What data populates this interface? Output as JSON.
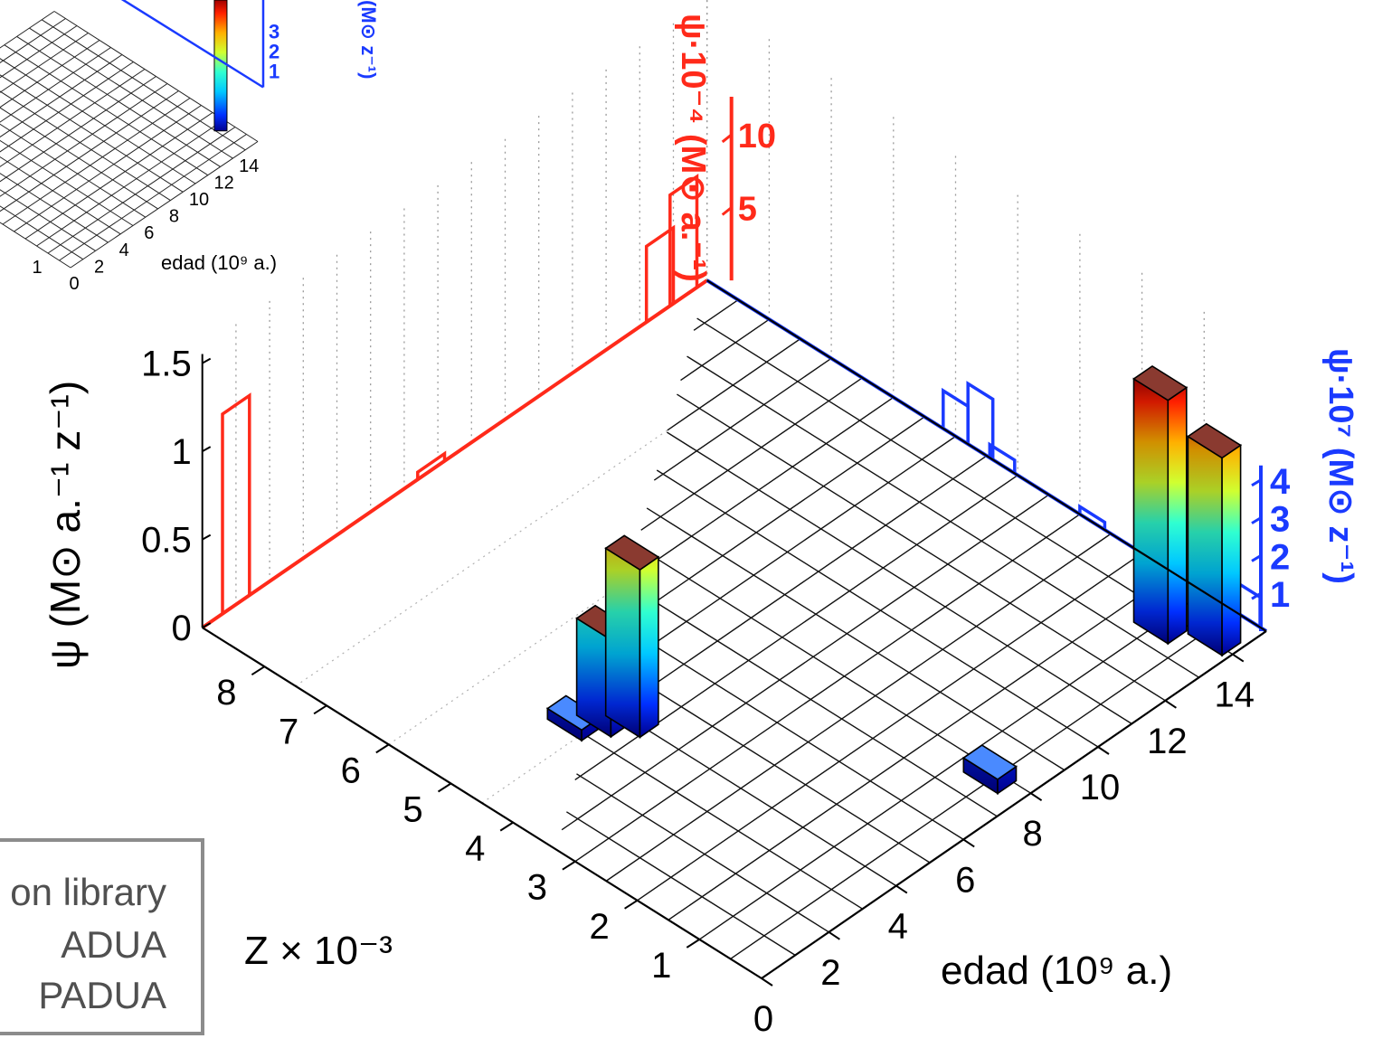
{
  "chart_data": {
    "type": "bar",
    "subtype": "3d-bar",
    "xlabel": "edad (10⁹ a.)",
    "ylabel": "Z × 10⁻³",
    "zlabel": "ψ (M⊙ a.⁻¹ z⁻¹)",
    "age_ticks": [
      "0",
      "2",
      "4",
      "6",
      "8",
      "10",
      "12",
      "14"
    ],
    "age_range": [
      0,
      15
    ],
    "z_ticks": [
      "1",
      "2",
      "3",
      "4",
      "5",
      "6",
      "7",
      "8"
    ],
    "z_range": [
      0,
      9
    ],
    "psi_ticks": [
      "0",
      "0.5",
      "1",
      "1.5"
    ],
    "psi_range": [
      0,
      1.6
    ],
    "grid": true,
    "bars": [
      {
        "age": 3.1,
        "z": 4.7,
        "psi": 0.06
      },
      {
        "age": 3.6,
        "z": 4.5,
        "psi": 0.55
      },
      {
        "age": 4.0,
        "z": 4.25,
        "psi": 0.95
      },
      {
        "age": 7.8,
        "z": 0.55,
        "psi": 0.08
      },
      {
        "age": 13.6,
        "z": 0.95,
        "psi": 1.38
      },
      {
        "age": 14.1,
        "z": 0.35,
        "psi": 1.12
      }
    ],
    "projection_age": {
      "label": "ψ·10⁻⁴ (M⊙ a.⁻¹)",
      "color": "#ff2a1a",
      "ticks": [
        "5",
        "10"
      ],
      "range": [
        0,
        12
      ],
      "bars": [
        {
          "age": 1.0,
          "value": 13.7
        },
        {
          "age": 6.8,
          "value": 0.5
        },
        {
          "age": 13.6,
          "value": 5.2
        },
        {
          "age": 14.3,
          "value": 7.6
        }
      ]
    },
    "projection_z": {
      "label": "ψ·10⁷ (M⊙ z⁻¹)",
      "color": "#1a3aff",
      "ticks": [
        "1",
        "2",
        "3",
        "4"
      ],
      "range": [
        0,
        4.3
      ],
      "bars": [
        {
          "z": 0.3,
          "value": 0.8
        },
        {
          "z": 0.65,
          "value": 2.3
        },
        {
          "z": 1.0,
          "value": 1.8
        },
        {
          "z": 2.8,
          "value": 0.2
        },
        {
          "z": 4.25,
          "value": 0.35
        },
        {
          "z": 4.6,
          "value": 1.6
        },
        {
          "z": 5.0,
          "value": 1.0
        }
      ]
    },
    "inset": {
      "xlabel": "edad (10⁹ a.)",
      "age_ticks": [
        "0",
        "2",
        "4",
        "6",
        "8",
        "10",
        "12",
        "14"
      ],
      "z_ticks_visible": [
        "1"
      ],
      "side_ticks": [
        "1",
        "2",
        "3"
      ],
      "side_label": "(M⊙ z⁻¹)"
    }
  },
  "legend": {
    "lines": [
      "on library",
      "ADUA",
      "PADUA"
    ]
  }
}
